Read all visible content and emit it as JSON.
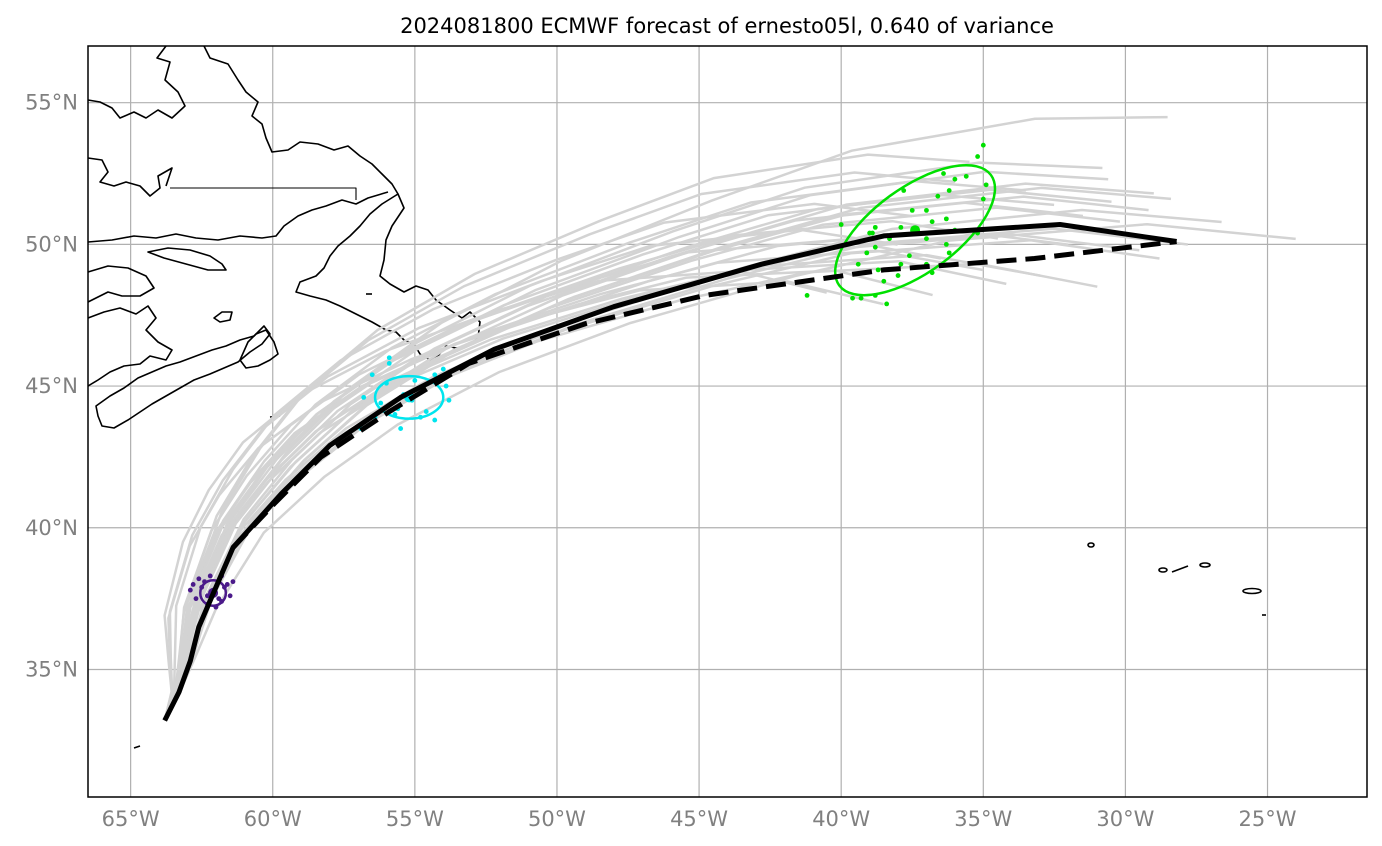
{
  "title": "2024081800 ECMWF forecast of ernesto05l, 0.640 of variance",
  "map": {
    "lon_range": [
      -66.5,
      -21.5
    ],
    "lat_range": [
      30.5,
      57.0
    ],
    "lon_ticks": [
      {
        "value": -65,
        "label": "65°W"
      },
      {
        "value": -60,
        "label": "60°W"
      },
      {
        "value": -55,
        "label": "55°W"
      },
      {
        "value": -50,
        "label": "50°W"
      },
      {
        "value": -45,
        "label": "45°W"
      },
      {
        "value": -40,
        "label": "40°W"
      },
      {
        "value": -35,
        "label": "35°W"
      },
      {
        "value": -30,
        "label": "30°W"
      },
      {
        "value": -25,
        "label": "25°W"
      }
    ],
    "lat_ticks": [
      {
        "value": 35,
        "label": "35°N"
      },
      {
        "value": 40,
        "label": "40°N"
      },
      {
        "value": 45,
        "label": "45°N"
      },
      {
        "value": 50,
        "label": "50°N"
      },
      {
        "value": 55,
        "label": "55°N"
      }
    ],
    "grid": true
  },
  "colors": {
    "ensemble": "#d3d3d3",
    "mean_track": "#000000",
    "alt_track": "#000000",
    "day_early": "#4b1a8a",
    "day_mid": "#00e5ee",
    "day_late": "#00e000"
  },
  "tracks": {
    "mean": [
      [
        -63.8,
        33.2
      ],
      [
        -63.3,
        34.2
      ],
      [
        -62.9,
        35.3
      ],
      [
        -62.6,
        36.5
      ],
      [
        -61.4,
        39.3
      ],
      [
        -59.7,
        41.2
      ],
      [
        -58.0,
        42.9
      ],
      [
        -55.5,
        44.6
      ],
      [
        -52.2,
        46.3
      ],
      [
        -48.0,
        47.8
      ],
      [
        -42.8,
        49.3
      ],
      [
        -38.5,
        50.3
      ],
      [
        -32.3,
        50.7
      ],
      [
        -28.2,
        50.1
      ]
    ],
    "alt": [
      [
        -61.4,
        39.3
      ],
      [
        -59.9,
        40.9
      ],
      [
        -58.3,
        42.5
      ],
      [
        -55.9,
        44.1
      ],
      [
        -53.1,
        45.8
      ],
      [
        -49.0,
        47.2
      ],
      [
        -44.8,
        48.2
      ],
      [
        -38.5,
        49.1
      ],
      [
        -33.2,
        49.5
      ],
      [
        -28.2,
        50.1
      ]
    ],
    "ensemble_endpoints": [
      [
        -28.5,
        54.5
      ],
      [
        -30.8,
        52.7
      ],
      [
        -30.6,
        52.3
      ],
      [
        -29.0,
        51.8
      ],
      [
        -28.4,
        51.6
      ],
      [
        -30.5,
        51.5
      ],
      [
        -29.2,
        51.2
      ],
      [
        -26.6,
        50.8
      ],
      [
        -24.0,
        50.2
      ],
      [
        -27.8,
        50.0
      ],
      [
        -28.8,
        49.5
      ],
      [
        -30.2,
        50.8
      ],
      [
        -34.2,
        48.6
      ],
      [
        -36.8,
        48.2
      ],
      [
        -38.5,
        47.9
      ],
      [
        -40.5,
        48.3
      ],
      [
        -35.0,
        49.1
      ],
      [
        -33.0,
        48.9
      ],
      [
        -31.5,
        51.0
      ],
      [
        -36.0,
        52.2
      ],
      [
        -34.5,
        50.2
      ],
      [
        -32.0,
        50.0
      ],
      [
        -29.5,
        49.8
      ],
      [
        -37.5,
        51.0
      ],
      [
        -33.5,
        51.9
      ],
      [
        -36.5,
        49.5
      ],
      [
        -31.0,
        48.5
      ],
      [
        -35.5,
        52.9
      ],
      [
        -38.0,
        50.0
      ],
      [
        -32.5,
        51.4
      ]
    ]
  },
  "positions": [
    {
      "name": "early",
      "color_key": "day_early",
      "center": [
        -62.1,
        37.7
      ],
      "radius_deg": [
        0.45,
        0.45
      ],
      "tilt": 0,
      "members": [
        [
          -62.6,
          38.2
        ],
        [
          -62.9,
          37.8
        ],
        [
          -61.6,
          38.0
        ],
        [
          -61.8,
          38.3
        ],
        [
          -62.3,
          37.3
        ],
        [
          -61.9,
          37.5
        ],
        [
          -62.5,
          37.9
        ],
        [
          -61.5,
          37.6
        ],
        [
          -62.2,
          38.3
        ],
        [
          -62.0,
          37.2
        ],
        [
          -61.7,
          37.9
        ],
        [
          -62.7,
          37.5
        ],
        [
          -62.4,
          38.1
        ],
        [
          -61.4,
          38.1
        ],
        [
          -62.1,
          37.8
        ],
        [
          -62.8,
          38.0
        ],
        [
          -62.3,
          37.6
        ],
        [
          -61.8,
          37.4
        ]
      ]
    },
    {
      "name": "mid",
      "color_key": "day_mid",
      "center": [
        -55.2,
        44.6
      ],
      "radius_deg": [
        1.2,
        0.75
      ],
      "tilt": 0,
      "members": [
        [
          -55.9,
          46.0
        ],
        [
          -55.9,
          45.8
        ],
        [
          -56.5,
          45.4
        ],
        [
          -54.0,
          45.6
        ],
        [
          -54.3,
          45.4
        ],
        [
          -56.0,
          45.1
        ],
        [
          -54.7,
          44.9
        ],
        [
          -53.9,
          45.0
        ],
        [
          -56.8,
          44.6
        ],
        [
          -55.4,
          44.7
        ],
        [
          -55.1,
          44.5
        ],
        [
          -53.8,
          44.5
        ],
        [
          -55.6,
          44.2
        ],
        [
          -55.7,
          44.0
        ],
        [
          -56.9,
          43.5
        ],
        [
          -55.5,
          43.5
        ],
        [
          -54.3,
          43.8
        ],
        [
          -56.2,
          44.4
        ],
        [
          -54.6,
          44.1
        ],
        [
          -55.0,
          45.2
        ],
        [
          -56.4,
          43.9
        ],
        [
          -54.8,
          43.9
        ]
      ]
    },
    {
      "name": "late",
      "color_key": "day_late",
      "center": [
        -37.4,
        50.5
      ],
      "radius_deg": [
        3.3,
        1.5
      ],
      "tilt": -36,
      "members": [
        [
          -35.0,
          53.5
        ],
        [
          -35.2,
          53.1
        ],
        [
          -36.0,
          52.3
        ],
        [
          -35.6,
          52.4
        ],
        [
          -36.4,
          52.5
        ],
        [
          -36.2,
          51.9
        ],
        [
          -37.8,
          51.9
        ],
        [
          -35.0,
          51.6
        ],
        [
          -34.9,
          52.1
        ],
        [
          -36.6,
          51.7
        ],
        [
          -37.0,
          51.2
        ],
        [
          -37.5,
          51.2
        ],
        [
          -36.8,
          50.8
        ],
        [
          -38.8,
          50.6
        ],
        [
          -36.3,
          50.9
        ],
        [
          -36.0,
          50.5
        ],
        [
          -38.9,
          50.4
        ],
        [
          -37.9,
          50.6
        ],
        [
          -36.3,
          50.0
        ],
        [
          -37.0,
          50.2
        ],
        [
          -38.3,
          50.2
        ],
        [
          -36.2,
          49.7
        ],
        [
          -38.8,
          49.9
        ],
        [
          -37.6,
          49.6
        ],
        [
          -35.2,
          50.4
        ],
        [
          -39.1,
          49.7
        ],
        [
          -40.0,
          50.7
        ],
        [
          -39.0,
          50.4
        ],
        [
          -37.0,
          49.3
        ],
        [
          -37.9,
          49.3
        ],
        [
          -39.4,
          49.3
        ],
        [
          -36.8,
          49.0
        ],
        [
          -38.0,
          48.9
        ],
        [
          -38.7,
          49.1
        ],
        [
          -39.6,
          48.1
        ],
        [
          -39.3,
          48.1
        ],
        [
          -41.2,
          48.2
        ],
        [
          -38.4,
          47.9
        ],
        [
          -38.5,
          48.7
        ],
        [
          -38.8,
          48.2
        ]
      ]
    }
  ]
}
